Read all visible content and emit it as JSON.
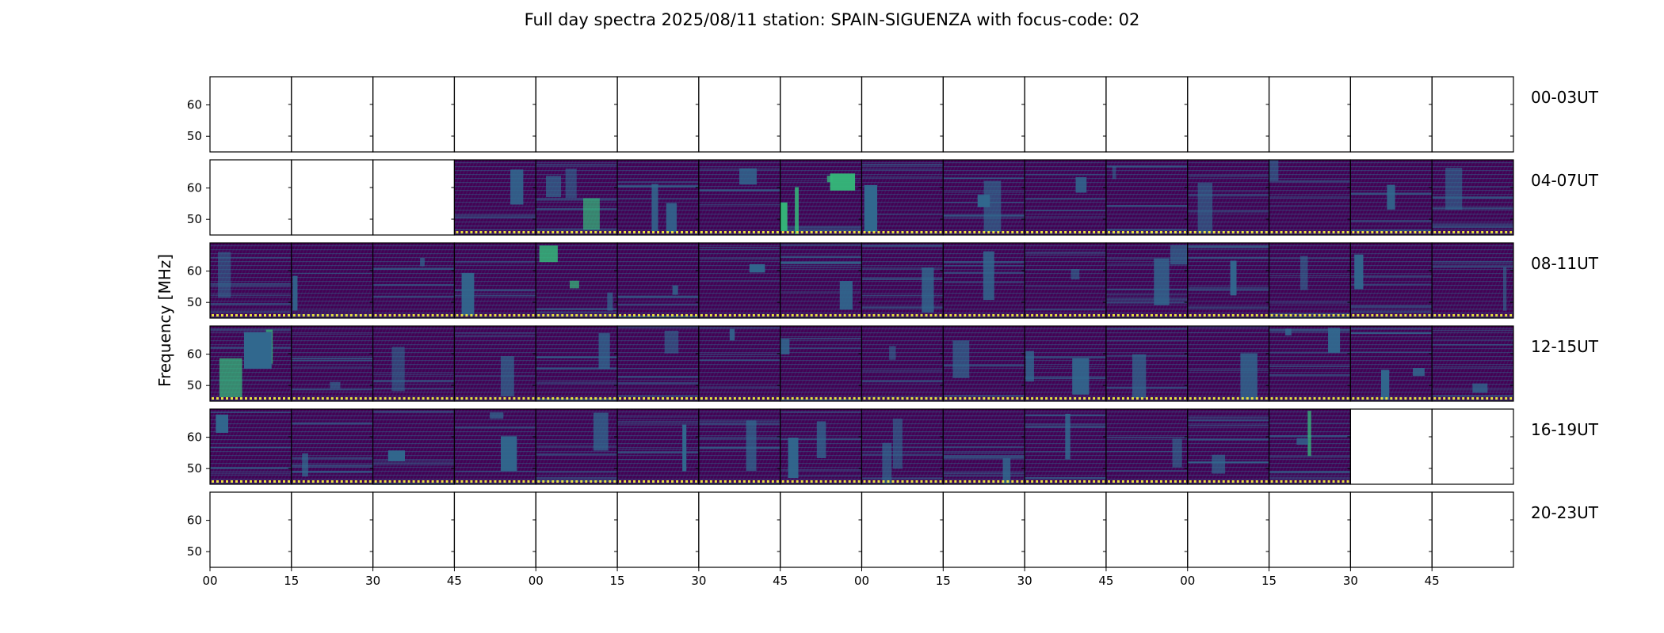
{
  "chart_data": {
    "type": "heatmap",
    "title": "Full day spectra 2025/08/11 station: SPAIN-SIGUENZA with focus-code: 02",
    "xlabel": "",
    "ylabel": "Frequency [MHz]",
    "xtick_labels": [
      "00",
      "15",
      "30",
      "45",
      "00",
      "15",
      "30",
      "45",
      "00",
      "15",
      "30",
      "45",
      "00",
      "15",
      "30",
      "45"
    ],
    "ytick_labels": [
      "60",
      "50"
    ],
    "ytick_values": [
      60,
      50
    ],
    "ylim": [
      45,
      69
    ],
    "colormap": "viridis",
    "segments_per_row": 16,
    "segment_minutes": 15,
    "rows": [
      {
        "label": "00-03UT",
        "present": [
          0,
          0,
          0,
          0,
          0,
          0,
          0,
          0,
          0,
          0,
          0,
          0,
          0,
          0,
          0,
          0
        ],
        "intensity": [
          0,
          0,
          0,
          0,
          0,
          0,
          0,
          0,
          0,
          0,
          0,
          0,
          0,
          0,
          0,
          0
        ]
      },
      {
        "label": "04-07UT",
        "present": [
          0,
          0,
          0,
          1,
          1,
          1,
          1,
          1,
          1,
          1,
          1,
          1,
          1,
          1,
          1,
          1
        ],
        "intensity": [
          0,
          0,
          0,
          0.15,
          0.5,
          0.45,
          0.15,
          0.7,
          0.2,
          0.3,
          0.2,
          0.2,
          0.2,
          0.2,
          0.25,
          0.15
        ]
      },
      {
        "label": "08-11UT",
        "present": [
          1,
          1,
          1,
          1,
          1,
          1,
          1,
          1,
          1,
          1,
          1,
          1,
          1,
          1,
          1,
          1
        ],
        "intensity": [
          0.2,
          0.15,
          0.15,
          0.15,
          0.55,
          0.2,
          0.15,
          0.15,
          0.2,
          0.2,
          0.2,
          0.35,
          0.25,
          0.2,
          0.2,
          0.2
        ]
      },
      {
        "label": "12-15UT",
        "present": [
          1,
          1,
          1,
          1,
          1,
          1,
          1,
          1,
          1,
          1,
          1,
          1,
          1,
          1,
          1,
          1
        ],
        "intensity": [
          0.6,
          0.2,
          0.2,
          0.15,
          0.25,
          0.15,
          0.2,
          0.25,
          0.25,
          0.25,
          0.3,
          0.2,
          0.2,
          0.3,
          0.45,
          0.2
        ]
      },
      {
        "label": "16-19UT",
        "present": [
          1,
          1,
          1,
          1,
          1,
          1,
          1,
          1,
          1,
          1,
          1,
          1,
          1,
          1,
          0,
          0
        ],
        "intensity": [
          0.25,
          0.2,
          0.2,
          0.3,
          0.15,
          0.2,
          0.2,
          0.4,
          0.45,
          0.15,
          0.25,
          0.2,
          0.2,
          0.45,
          0,
          0
        ]
      },
      {
        "label": "20-23UT",
        "present": [
          0,
          0,
          0,
          0,
          0,
          0,
          0,
          0,
          0,
          0,
          0,
          0,
          0,
          0,
          0,
          0
        ],
        "intensity": [
          0,
          0,
          0,
          0,
          0,
          0,
          0,
          0,
          0,
          0,
          0,
          0,
          0,
          0,
          0,
          0
        ]
      }
    ],
    "colors": {
      "low": "#440154",
      "mid_low": "#3b2a84",
      "mid": "#31688e",
      "mid_high": "#35b779",
      "high": "#9fda3a",
      "max": "#fde725",
      "marker": "#e8e13f"
    }
  }
}
